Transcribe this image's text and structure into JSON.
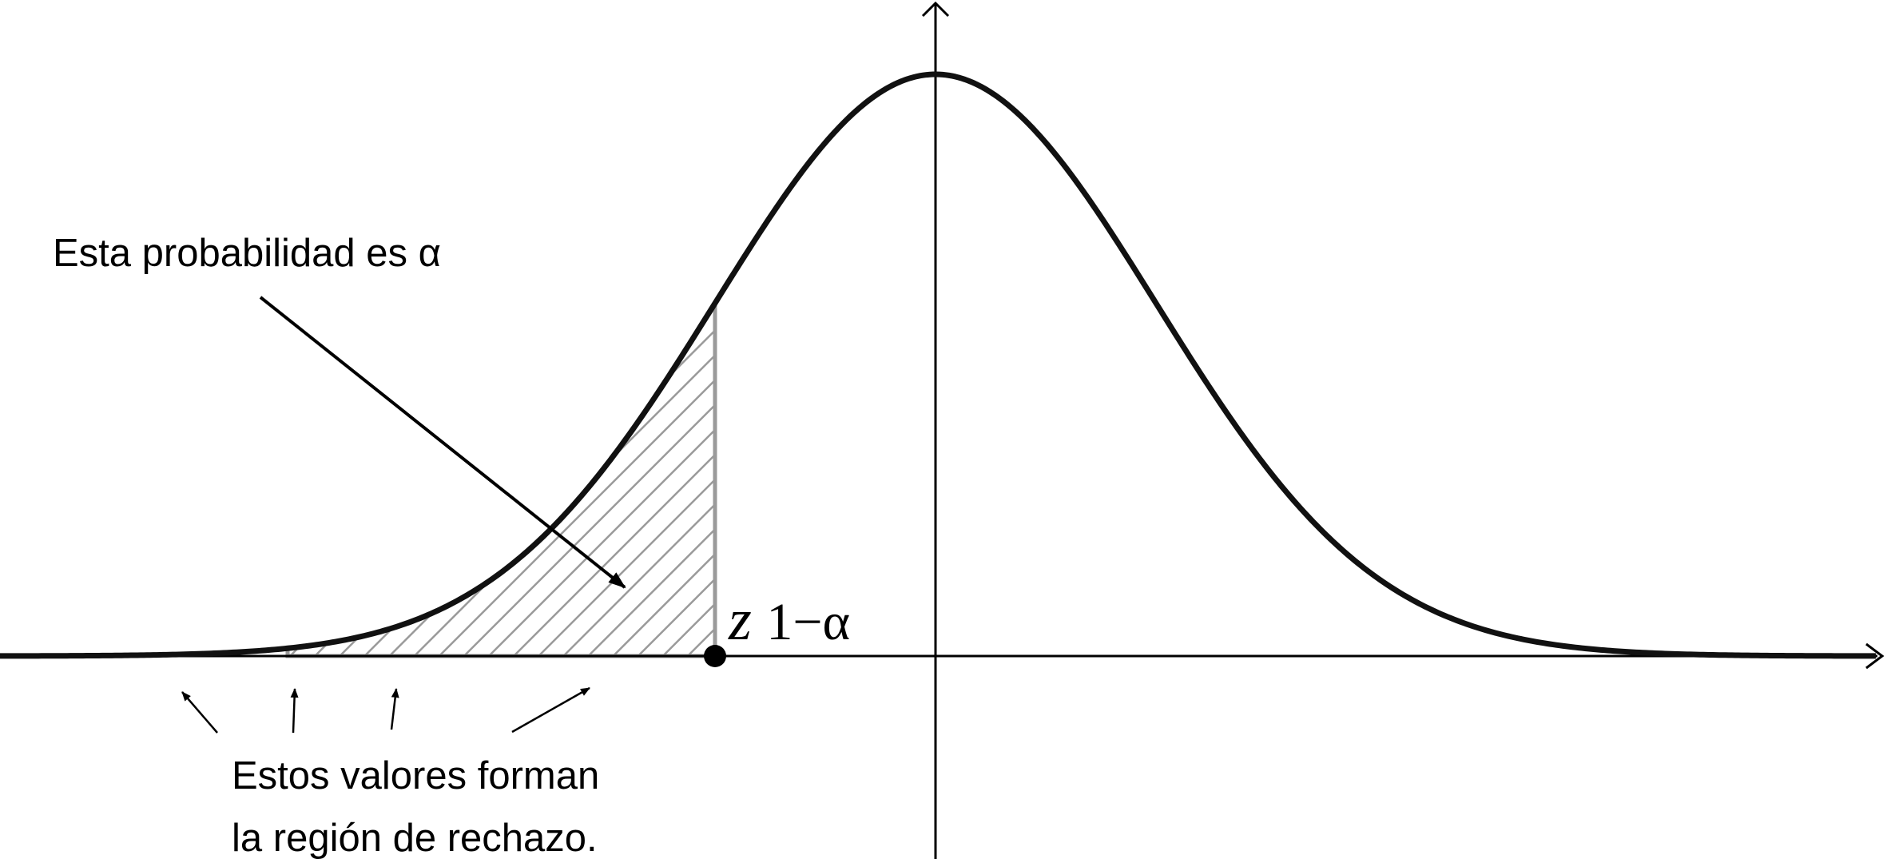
{
  "annotations": {
    "probability_label": "Esta probabilidad es α",
    "region_label_line1": "Estos valores forman",
    "region_label_line2": "la región de rechazo."
  },
  "critical_value": {
    "symbol": "z",
    "subscript": "1−α"
  },
  "chart_data": {
    "type": "area",
    "curve": "standard normal density",
    "shaded_region": "left tail, x ≤ z₁₋α",
    "critical_point_marker": true
  },
  "colors": {
    "curve": "#111111",
    "axes": "#000000",
    "hatch": "#9a9a9a",
    "region_border": "#9a9a9a"
  }
}
